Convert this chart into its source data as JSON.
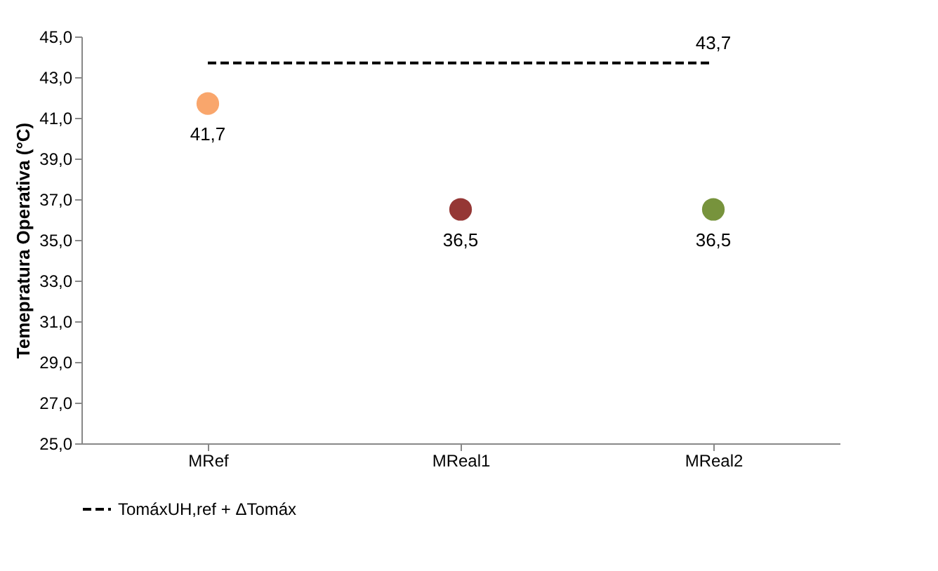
{
  "chart_data": {
    "type": "scatter",
    "ylabel": "Temepratura Operativa (°C)",
    "categories": [
      "MRef",
      "MReal1",
      "MReal2"
    ],
    "ylim": [
      25,
      45
    ],
    "yticks": [
      {
        "value": 25,
        "label": "25,0"
      },
      {
        "value": 27,
        "label": "27,0"
      },
      {
        "value": 29,
        "label": "29,0"
      },
      {
        "value": 31,
        "label": "31,0"
      },
      {
        "value": 33,
        "label": "33,0"
      },
      {
        "value": 35,
        "label": "35,0"
      },
      {
        "value": 37,
        "label": "37,0"
      },
      {
        "value": 39,
        "label": "39,0"
      },
      {
        "value": 41,
        "label": "41,0"
      },
      {
        "value": 43,
        "label": "43,0"
      },
      {
        "value": 45,
        "label": "45,0"
      }
    ],
    "grid": false,
    "legend": "bottom",
    "marker": "circle",
    "series": [
      {
        "colors": [
          "#f9a66c",
          "#953735",
          "#77933c"
        ],
        "values": [
          41.7,
          36.5,
          36.5
        ],
        "value_labels": [
          "41,7",
          "36,5",
          "36,5"
        ]
      },
      {
        "type": "line",
        "name": "TomáxUH,ref + ΔTomáx",
        "color": "#000000",
        "line_style": "dashed",
        "marker": "none",
        "values": [
          43.7,
          43.7,
          43.7
        ],
        "value_labels": [
          null,
          null,
          "43,7"
        ]
      }
    ]
  }
}
